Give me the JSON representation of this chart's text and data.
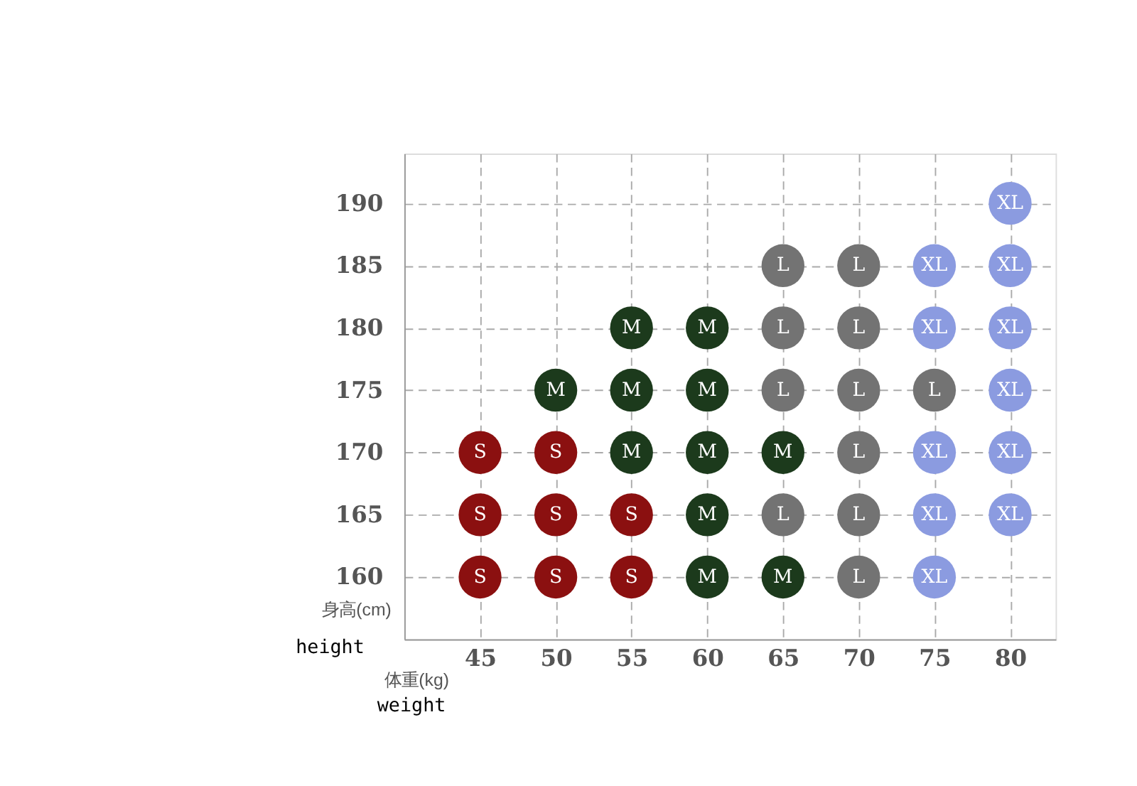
{
  "chart_data": {
    "type": "scatter",
    "xlabel": "体重(kg)",
    "ylabel": "身高(cm)",
    "annotations": [
      "height",
      "weight"
    ],
    "xlim": [
      40,
      83
    ],
    "ylim": [
      155,
      194
    ],
    "xticks": [
      45,
      50,
      55,
      60,
      65,
      70,
      75,
      80
    ],
    "yticks": [
      160,
      165,
      170,
      175,
      180,
      185,
      190
    ],
    "grid": true,
    "legend": false,
    "marker": "circle",
    "series": [
      {
        "name": "S",
        "color": "#8b1010",
        "x": [
          45,
          50,
          55,
          45,
          50,
          55,
          45,
          50
        ],
        "values": [
          160,
          160,
          160,
          165,
          165,
          165,
          170,
          170
        ]
      },
      {
        "name": "M",
        "color": "#1c3a1c",
        "x": [
          60,
          65,
          60,
          55,
          60,
          65,
          50,
          55,
          60,
          55,
          60
        ],
        "values": [
          160,
          160,
          165,
          170,
          170,
          170,
          175,
          175,
          175,
          180,
          180
        ]
      },
      {
        "name": "L",
        "color": "#737373",
        "x": [
          70,
          65,
          70,
          70,
          65,
          70,
          75,
          65,
          70,
          65,
          70
        ],
        "values": [
          160,
          165,
          165,
          170,
          175,
          175,
          175,
          180,
          180,
          185,
          185
        ]
      },
      {
        "name": "XL",
        "color": "#8b9be0",
        "x": [
          75,
          75,
          80,
          75,
          80,
          80,
          75,
          80,
          75,
          80,
          80
        ],
        "values": [
          160,
          165,
          165,
          170,
          170,
          175,
          180,
          180,
          185,
          185,
          190
        ]
      }
    ]
  }
}
